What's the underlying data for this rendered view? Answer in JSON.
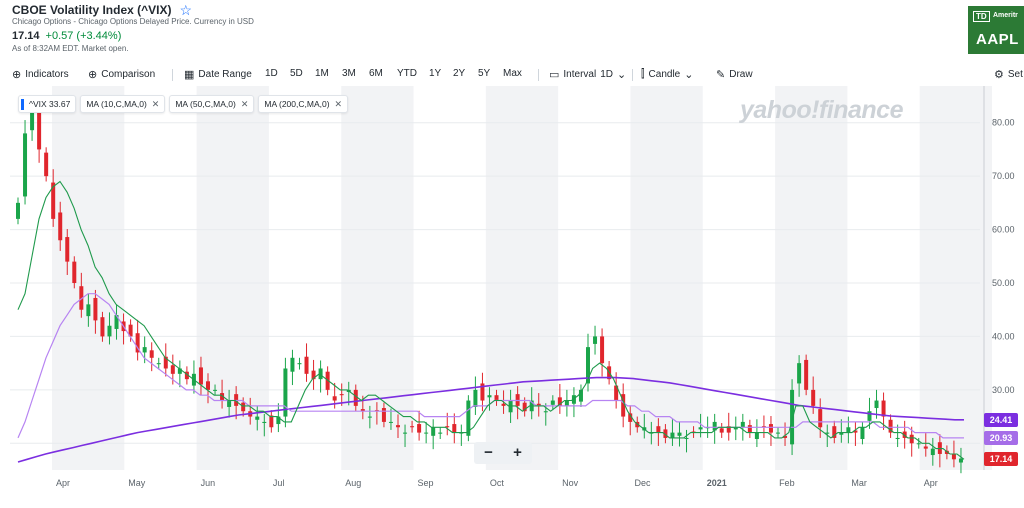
{
  "header": {
    "title": "CBOE Volatility Index (^VIX)",
    "star_icon": "star-outline-icon",
    "subtitle": "Chicago Options - Chicago Options Delayed Price. Currency in USD",
    "price": "17.14",
    "change": "+0.57 (+3.44%)",
    "as_of": "As of 8:32AM EDT. Market open.",
    "change_color": "#008b3a"
  },
  "ad": {
    "td_label": "TD",
    "brand": "Ameritr",
    "ticker": "AAPL"
  },
  "toolbar": {
    "indicators": "Indicators",
    "comparison": "Comparison",
    "date_range": "Date Range",
    "ranges": [
      "1D",
      "5D",
      "1M",
      "3M",
      "6M",
      "YTD",
      "1Y",
      "2Y",
      "5Y",
      "Max"
    ],
    "interval_label": "Interval",
    "interval_value": "1D",
    "candle": "Candle",
    "draw": "Draw",
    "settings": "Set"
  },
  "legend": {
    "main": "^VIX 33.67",
    "ma10": "MA (10,C,MA,0)",
    "ma50": "MA (50,C,MA,0)",
    "ma200": "MA (200,C,MA,0)"
  },
  "watermark": "yahoo!finance",
  "zoom": {
    "minus": "−",
    "plus": "+"
  },
  "price_tags": {
    "ma200": "24.41",
    "ma50": "20.93",
    "last": "17.14"
  },
  "colors": {
    "up": "#1aa54a",
    "down": "#e0262d",
    "ma10": "#1f9a4c",
    "ma50": "#b784f2",
    "ma200": "#7b2ee0",
    "band": "#f2f3f5",
    "tag_ma200": "#7b2ee0",
    "tag_ma50": "#a56de8",
    "tag_last": "#e0262d"
  },
  "chart_data": {
    "type": "candlestick",
    "title": "CBOE Volatility Index (^VIX)",
    "ylim": [
      15,
      85
    ],
    "y_ticks": [
      20,
      30,
      40,
      50,
      60,
      70,
      80
    ],
    "y_tick_labels": [
      "",
      "30.00",
      "40.00",
      "50.00",
      "60.00",
      "70.00",
      "80.00"
    ],
    "x_labels": [
      "Apr",
      "May",
      "Jun",
      "Jul",
      "Aug",
      "Sep",
      "Oct",
      "Nov",
      "Dec",
      "2021",
      "Feb",
      "Mar",
      "Apr"
    ],
    "grid": true,
    "legend_position": "top-left",
    "series": [
      {
        "name": "MA (10,C,MA,0)",
        "values": [
          45,
          48,
          55,
          62,
          66,
          68,
          69,
          67,
          64,
          60,
          57,
          53,
          51,
          48,
          46,
          45,
          44,
          43,
          42,
          40,
          38,
          36,
          35,
          34,
          33,
          32,
          31,
          30,
          29,
          29,
          28,
          28,
          27,
          27,
          26,
          26,
          25,
          25,
          24,
          24,
          27,
          30,
          32,
          33,
          32,
          31,
          30,
          30,
          29,
          28,
          29,
          29,
          28,
          27,
          26,
          25,
          25,
          24,
          24,
          23,
          23,
          23,
          22,
          22,
          22,
          23,
          25,
          27,
          28,
          28,
          27,
          27,
          26,
          27,
          27,
          27,
          26,
          27,
          28,
          28,
          29,
          31,
          34,
          35,
          34,
          32,
          29,
          26,
          24,
          23,
          22,
          22,
          22,
          21,
          21,
          21,
          22,
          22,
          22,
          22,
          23,
          23,
          23,
          23,
          22,
          22,
          22,
          22,
          21,
          21,
          22,
          27,
          27,
          24,
          23,
          22,
          21,
          22,
          22,
          22,
          23,
          23,
          24,
          24,
          23,
          22,
          22,
          21,
          21,
          20,
          20,
          19,
          19,
          18,
          18,
          17
        ]
      },
      {
        "name": "MA (50,C,MA,0)",
        "values": [
          21,
          24,
          28,
          32,
          36,
          39,
          42,
          44,
          46,
          47,
          48,
          48,
          47,
          46,
          44,
          42,
          40,
          38,
          36,
          35,
          34,
          33,
          32,
          31,
          30,
          30,
          29,
          29,
          28,
          28,
          28,
          28,
          28,
          27,
          27,
          27,
          27,
          27,
          27,
          26,
          26,
          26,
          26,
          26,
          26,
          26,
          26,
          26,
          26,
          26,
          26,
          26,
          26,
          26,
          26,
          26,
          26,
          26,
          25,
          25,
          25,
          25,
          25,
          25,
          26,
          27,
          27,
          27,
          28,
          28,
          28,
          28,
          28,
          28,
          27,
          27,
          27,
          27,
          27,
          27,
          27,
          27,
          28,
          28,
          28,
          28,
          28,
          27,
          27,
          26,
          26,
          25,
          25,
          25,
          24,
          24,
          24,
          24,
          23,
          23,
          23,
          23,
          23,
          23,
          23,
          23,
          23,
          23,
          23,
          23,
          23,
          23,
          24,
          24,
          24,
          24,
          24,
          24,
          24,
          24,
          24,
          24,
          24,
          23,
          23,
          23,
          23,
          23,
          22,
          22,
          22,
          22,
          21,
          21,
          21,
          21
        ]
      },
      {
        "name": "MA (200,C,MA,0)",
        "values": [
          16.5,
          17,
          17.5,
          18,
          18.4,
          18.8,
          19.2,
          19.6,
          20,
          20.4,
          20.8,
          21.2,
          21.6,
          22,
          22.3,
          22.6,
          22.9,
          23.2,
          23.5,
          23.8,
          24.1,
          24.4,
          24.7,
          25,
          25.3,
          25.5,
          25.7,
          25.9,
          26.1,
          26.3,
          26.5,
          26.7,
          26.9,
          27.1,
          27.3,
          27.5,
          27.7,
          27.9,
          28.1,
          28.3,
          28.5,
          28.7,
          28.9,
          29.1,
          29.3,
          29.5,
          29.7,
          29.9,
          30.1,
          30.3,
          30.5,
          30.7,
          30.9,
          31.1,
          31.3,
          31.5,
          31.6,
          31.7,
          31.8,
          31.9,
          32,
          32.1,
          32.2,
          32.3,
          32.3,
          32.3,
          32.2,
          32.1,
          31.9,
          31.7,
          31.5,
          31.3,
          31,
          30.7,
          30.4,
          30.1,
          29.8,
          29.5,
          29.2,
          28.9,
          28.6,
          28.3,
          28,
          27.7,
          27.4,
          27.1,
          26.9,
          26.7,
          26.5,
          26.3,
          26.1,
          25.9,
          25.7,
          25.5,
          25.3,
          25.1,
          25,
          24.9,
          24.8,
          24.7,
          24.6,
          24.5,
          24.4,
          24.4
        ]
      }
    ],
    "candles_close": [
      65,
      78,
      82,
      75,
      70,
      62,
      58,
      54,
      50,
      45,
      46,
      43,
      40,
      42,
      44,
      41,
      40,
      37,
      38,
      36,
      35,
      34,
      33,
      34,
      32,
      33,
      31,
      30,
      30,
      28,
      28,
      27,
      26,
      25,
      25,
      24,
      23,
      25,
      34,
      36,
      35,
      33,
      32,
      34,
      30,
      28,
      29,
      30,
      27,
      26,
      25,
      26,
      24,
      24,
      23,
      22,
      23,
      22,
      22,
      23,
      22,
      23,
      22,
      22,
      28,
      30,
      28,
      29,
      28,
      27,
      28,
      27,
      26,
      28,
      27,
      26,
      28,
      27,
      28,
      29,
      30,
      38,
      40,
      35,
      32,
      28,
      25,
      24,
      23,
      23,
      22,
      22,
      21,
      22,
      22,
      21,
      22,
      23,
      23,
      24,
      22,
      22,
      23,
      24,
      22,
      22,
      23,
      22,
      22,
      21,
      30,
      35,
      30,
      27,
      23,
      22,
      21,
      22,
      23,
      22,
      23,
      26,
      28,
      25,
      22,
      21,
      21,
      20,
      20,
      19,
      19,
      18,
      18,
      17,
      17.14
    ]
  }
}
